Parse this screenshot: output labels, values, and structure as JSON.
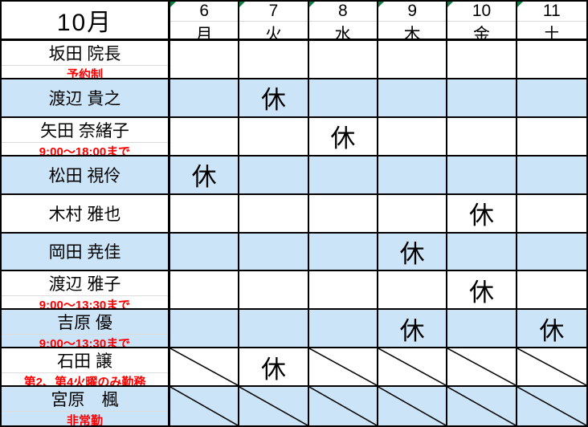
{
  "colors": {
    "row_highlight": "#cce4f7",
    "note_red": "#ff0000",
    "flag_green": "#107c41",
    "grid_line": "#000000"
  },
  "header": {
    "month_label": "10月",
    "days": [
      {
        "date": "6",
        "weekday": "月"
      },
      {
        "date": "7",
        "weekday": "火"
      },
      {
        "date": "8",
        "weekday": "水"
      },
      {
        "date": "9",
        "weekday": "木"
      },
      {
        "date": "10",
        "weekday": "金"
      },
      {
        "date": "11",
        "weekday": "土"
      }
    ]
  },
  "day_off_label": "休",
  "rows": [
    {
      "name": "坂田 院長",
      "note": "予約制",
      "cells": [
        "",
        "",
        "",
        "",
        "",
        ""
      ]
    },
    {
      "name": "渡辺 貴之",
      "note": "",
      "cells": [
        "",
        "休",
        "",
        "",
        "",
        ""
      ]
    },
    {
      "name": "矢田 奈緒子",
      "note": "9:00～18:00まで",
      "cells": [
        "",
        "",
        "休",
        "",
        "",
        ""
      ]
    },
    {
      "name": "松田 視伶",
      "note": "",
      "cells": [
        "休",
        "",
        "",
        "",
        "",
        ""
      ]
    },
    {
      "name": "木村 雅也",
      "note": "",
      "cells": [
        "",
        "",
        "",
        "",
        "休",
        ""
      ]
    },
    {
      "name": "岡田 尭佳",
      "note": "",
      "cells": [
        "",
        "",
        "",
        "休",
        "",
        ""
      ]
    },
    {
      "name": "渡辺 雅子",
      "note": "9:00～13:30まで",
      "cells": [
        "",
        "",
        "",
        "",
        "休",
        ""
      ]
    },
    {
      "name": "吉原 優",
      "note": "9:00～13:30まで",
      "cells": [
        "",
        "",
        "",
        "休",
        "",
        "休"
      ]
    },
    {
      "name": "石田 譲",
      "note": "第2、第4火曜のみ勤務",
      "cells": [
        "diag",
        "休",
        "diag",
        "diag",
        "diag",
        "diag"
      ]
    },
    {
      "name": "宮原　楓",
      "note": "非常勤",
      "cells": [
        "diag",
        "diag",
        "diag",
        "diag",
        "diag",
        "diag"
      ]
    }
  ]
}
